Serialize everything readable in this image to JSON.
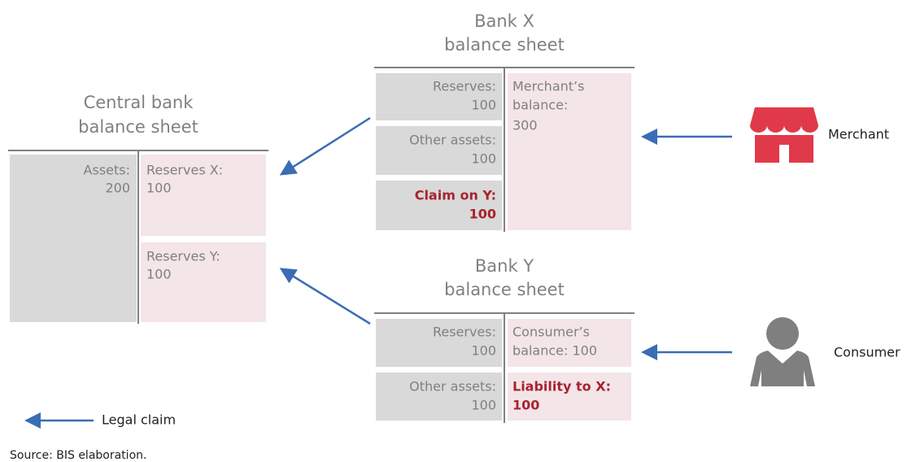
{
  "central_bank": {
    "title": [
      "Central bank",
      "balance sheet"
    ],
    "assets": {
      "label": "Assets:",
      "value": 200
    },
    "liabilities": [
      {
        "label": "Reserves X:",
        "value": 100
      },
      {
        "label": "Reserves Y:",
        "value": 100
      }
    ]
  },
  "bank_x": {
    "title": [
      "Bank X",
      "balance sheet"
    ],
    "assets": [
      {
        "label": "Reserves:",
        "value": 100
      },
      {
        "label": "Other assets:",
        "value": 100
      },
      {
        "label": "Claim on Y:",
        "value": 100
      }
    ],
    "liabilities": [
      {
        "lines": [
          "Merchant’s",
          "balance:",
          "300"
        ]
      }
    ]
  },
  "bank_y": {
    "title": [
      "Bank Y",
      "balance sheet"
    ],
    "assets": [
      {
        "label": "Reserves:",
        "value": 100
      },
      {
        "label": "Other assets:",
        "value": 100
      }
    ],
    "liabilities": [
      {
        "lines": [
          "Consumer’s",
          "balance: 100"
        ]
      },
      {
        "label": "Liability to X:",
        "value": 100
      }
    ]
  },
  "actors": [
    "Merchant",
    "Consumer"
  ],
  "legend": "Legal claim",
  "source": "Source: BIS elaboration."
}
